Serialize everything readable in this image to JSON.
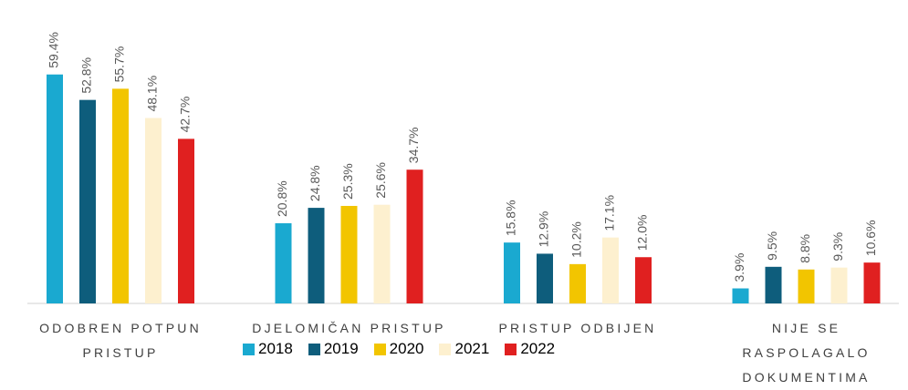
{
  "chart_data": {
    "type": "bar",
    "categories": [
      "ODOBREN POTPUN PRISTUP",
      "DJELOMIČAN PRISTUP",
      "PRISTUP ODBIJEN",
      "NIJE SE RASPOLAGALO DOKUMENTIMA"
    ],
    "series": [
      {
        "name": "2018",
        "color": "#1aa9d0",
        "values": [
          59.4,
          20.8,
          15.8,
          3.9
        ],
        "value_labels": [
          "59.4%",
          "20.8%",
          "15.8%",
          "3.9%"
        ]
      },
      {
        "name": "2019",
        "color": "#0e5d7c",
        "values": [
          52.8,
          24.8,
          12.9,
          9.5
        ],
        "value_labels": [
          "52.8%",
          "24.8%",
          "12.9%",
          "9.5%"
        ]
      },
      {
        "name": "2020",
        "color": "#f2c500",
        "values": [
          55.7,
          25.3,
          10.2,
          8.8
        ],
        "value_labels": [
          "55.7%",
          "25.3%",
          "10.2%",
          "8.8%"
        ]
      },
      {
        "name": "2021",
        "color": "#fdf0cf",
        "values": [
          48.1,
          25.6,
          17.1,
          9.3
        ],
        "value_labels": [
          "48.1%",
          "25.6%",
          "17.1%",
          "9.3%"
        ]
      },
      {
        "name": "2022",
        "color": "#e02020",
        "values": [
          42.7,
          34.7,
          12.0,
          10.6
        ],
        "value_labels": [
          "42.7%",
          "34.7%",
          "12.0%",
          "10.6%"
        ]
      }
    ],
    "legend": "bottom"
  }
}
